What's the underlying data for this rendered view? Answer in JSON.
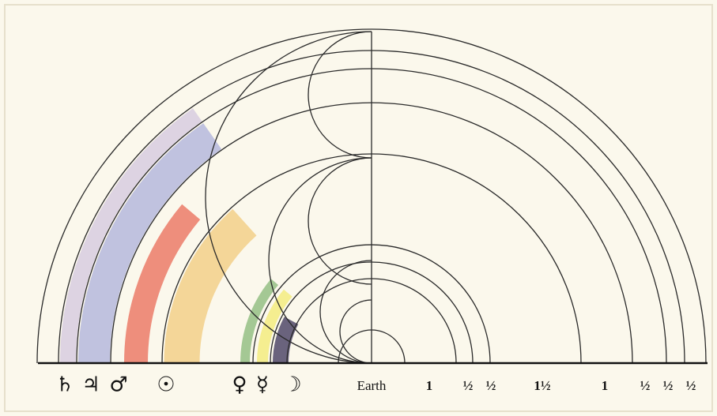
{
  "diagram": {
    "planets": [
      "♄",
      "♃",
      "♂",
      "☉",
      "♀",
      "☿",
      "☽"
    ],
    "earth": "Earth",
    "intervals": [
      "1",
      "½",
      "½",
      "1½",
      "1",
      "½",
      "½",
      "½"
    ]
  }
}
